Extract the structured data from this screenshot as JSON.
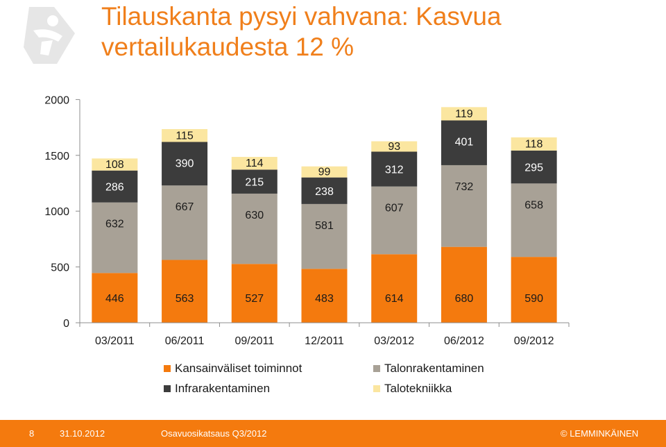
{
  "title": "Tilauskanta pysyi vahvana: Kasvua vertailukaudesta 12 %",
  "colors": {
    "title": "#F07F1B",
    "footer_bg": "#F47A0E"
  },
  "legend": [
    {
      "label": "Kansainväliset toiminnot",
      "color": "#F47A0E"
    },
    {
      "label": "Talonrakentaminen",
      "color": "#A8A196"
    },
    {
      "label": "Infrarakentaminen",
      "color": "#3C3C3C"
    },
    {
      "label": "Talotekniikka",
      "color": "#FBE6A0"
    }
  ],
  "chart_data": {
    "type": "bar",
    "stacked": true,
    "categories": [
      "03/2011",
      "06/2011",
      "09/2011",
      "12/2011",
      "03/2012",
      "06/2012",
      "09/2012"
    ],
    "series": [
      {
        "name": "Kansainväliset toiminnot",
        "color": "#F47A0E",
        "values": [
          446,
          563,
          527,
          483,
          614,
          680,
          590
        ]
      },
      {
        "name": "Talonrakentaminen",
        "color": "#A8A196",
        "values": [
          632,
          667,
          630,
          581,
          607,
          732,
          658
        ]
      },
      {
        "name": "Infrarakentaminen",
        "color": "#3C3C3C",
        "values": [
          286,
          390,
          215,
          238,
          312,
          401,
          295
        ]
      },
      {
        "name": "Talotekniikka",
        "color": "#FBE6A0",
        "values": [
          108,
          115,
          114,
          99,
          93,
          119,
          118
        ]
      }
    ],
    "y_ticks": [
      "0",
      "500",
      "1000",
      "1500",
      "2000"
    ],
    "ylim": [
      0,
      2000
    ],
    "grid": false,
    "legend_position": "bottom"
  },
  "footer": {
    "page": "8",
    "date": "31.10.2012",
    "text": "Osavuosikatsaus Q3/2012",
    "brand": "© LEMMINKÄINEN"
  }
}
